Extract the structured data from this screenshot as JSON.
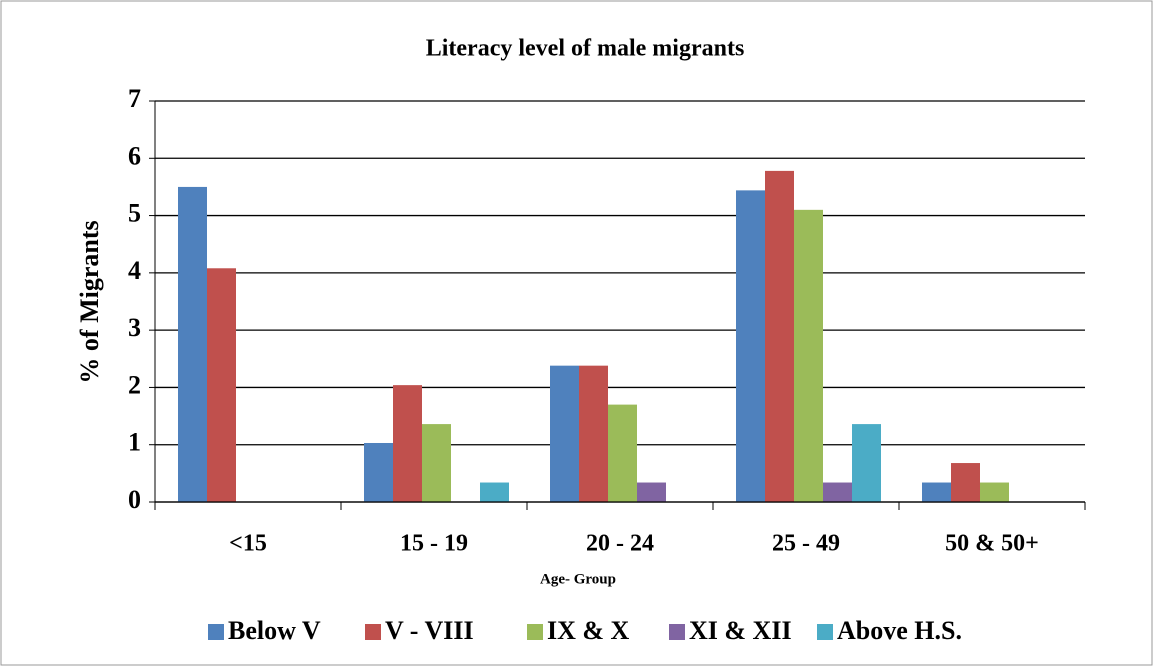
{
  "chart_data": {
    "type": "bar",
    "title": "Literacy level of male migrants",
    "x_label": "Age- Group",
    "y_label": "% of Migrants",
    "categories": [
      "<15",
      "15 - 19",
      "20 - 24",
      "25 - 49",
      "50 & 50+"
    ],
    "series": [
      {
        "name": "Below V",
        "color": "#4f81bd",
        "values": [
          5.5,
          1.03,
          2.38,
          5.44,
          0.34
        ]
      },
      {
        "name": "V - VIII",
        "color": "#c0504d",
        "values": [
          4.08,
          2.04,
          2.38,
          5.78,
          0.68
        ]
      },
      {
        "name": "IX & X",
        "color": "#9bbb59",
        "values": [
          0,
          1.36,
          1.7,
          5.1,
          0.34
        ]
      },
      {
        "name": "XI & XII",
        "color": "#8064a2",
        "values": [
          0,
          0,
          0.34,
          0.34,
          0
        ]
      },
      {
        "name": "Above H.S.",
        "color": "#4bacc6",
        "values": [
          0,
          0.34,
          0,
          1.36,
          0
        ]
      }
    ],
    "ylim": [
      0,
      7
    ],
    "yticks": [
      0,
      1,
      2,
      3,
      4,
      5,
      6,
      7
    ],
    "grid": true,
    "legend": "bottom"
  }
}
